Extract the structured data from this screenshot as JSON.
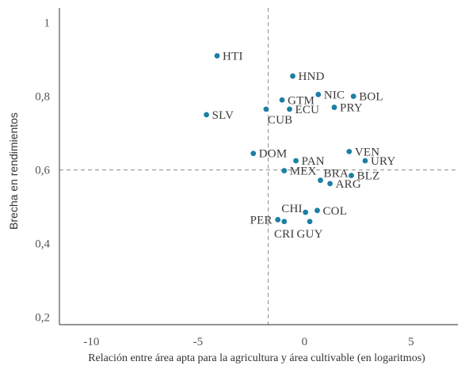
{
  "chart_data": {
    "type": "scatter",
    "xlabel": "Relación entre área apta para la agricultura y área cultivable (en logaritmos)",
    "ylabel": "Brecha en rendimientos",
    "xlim": [
      -11.5,
      7.2
    ],
    "ylim": [
      0.18,
      1.04
    ],
    "x_ticks": [
      {
        "value": -10,
        "label": "-10"
      },
      {
        "value": -5,
        "label": "-5"
      },
      {
        "value": 0,
        "label": "0"
      },
      {
        "value": 5,
        "label": "5"
      }
    ],
    "y_ticks": [
      {
        "value": 0.2,
        "label": "0,2"
      },
      {
        "value": 0.4,
        "label": "0,4"
      },
      {
        "value": 0.6,
        "label": "0,6"
      },
      {
        "value": 0.8,
        "label": "0,8"
      },
      {
        "value": 1.0,
        "label": "1"
      }
    ],
    "reference_lines": {
      "x": -1.7,
      "y": 0.6
    },
    "grid": false,
    "marker_color": "#1c7fa3",
    "points": [
      {
        "label": "HTI",
        "x": -4.1,
        "y": 0.91,
        "label_pos": "right"
      },
      {
        "label": "HND",
        "x": -0.55,
        "y": 0.855,
        "label_pos": "right"
      },
      {
        "label": "NIC",
        "x": 0.65,
        "y": 0.805,
        "label_pos": "right"
      },
      {
        "label": "GTM",
        "x": -1.05,
        "y": 0.79,
        "label_pos": "right"
      },
      {
        "label": "BOL",
        "x": 2.3,
        "y": 0.8,
        "label_pos": "right"
      },
      {
        "label": "PRY",
        "x": 1.4,
        "y": 0.77,
        "label_pos": "right"
      },
      {
        "label": "ECU",
        "x": -0.7,
        "y": 0.765,
        "label_pos": "right"
      },
      {
        "label": "CUB",
        "x": -1.8,
        "y": 0.765,
        "label_pos": "below-right"
      },
      {
        "label": "SLV",
        "x": -4.6,
        "y": 0.75,
        "label_pos": "right"
      },
      {
        "label": "DOM",
        "x": -2.4,
        "y": 0.645,
        "label_pos": "right"
      },
      {
        "label": "PAN",
        "x": -0.4,
        "y": 0.625,
        "label_pos": "right"
      },
      {
        "label": "VEN",
        "x": 2.1,
        "y": 0.65,
        "label_pos": "right"
      },
      {
        "label": "URY",
        "x": 2.85,
        "y": 0.625,
        "label_pos": "right"
      },
      {
        "label": "MEX",
        "x": -0.95,
        "y": 0.598,
        "label_pos": "right"
      },
      {
        "label": "BLZ",
        "x": 2.2,
        "y": 0.585,
        "label_pos": "right"
      },
      {
        "label": "BRA",
        "x": 0.75,
        "y": 0.572,
        "label_pos": "above-right"
      },
      {
        "label": "ARG",
        "x": 1.2,
        "y": 0.563,
        "label_pos": "right"
      },
      {
        "label": "CHI",
        "x": 0.05,
        "y": 0.485,
        "label_pos": "left-above"
      },
      {
        "label": "COL",
        "x": 0.6,
        "y": 0.49,
        "label_pos": "right"
      },
      {
        "label": "PER",
        "x": -1.25,
        "y": 0.465,
        "label_pos": "left"
      },
      {
        "label": "CRI",
        "x": -0.95,
        "y": 0.46,
        "label_pos": "below"
      },
      {
        "label": "GUY",
        "x": 0.25,
        "y": 0.46,
        "label_pos": "below"
      }
    ]
  }
}
